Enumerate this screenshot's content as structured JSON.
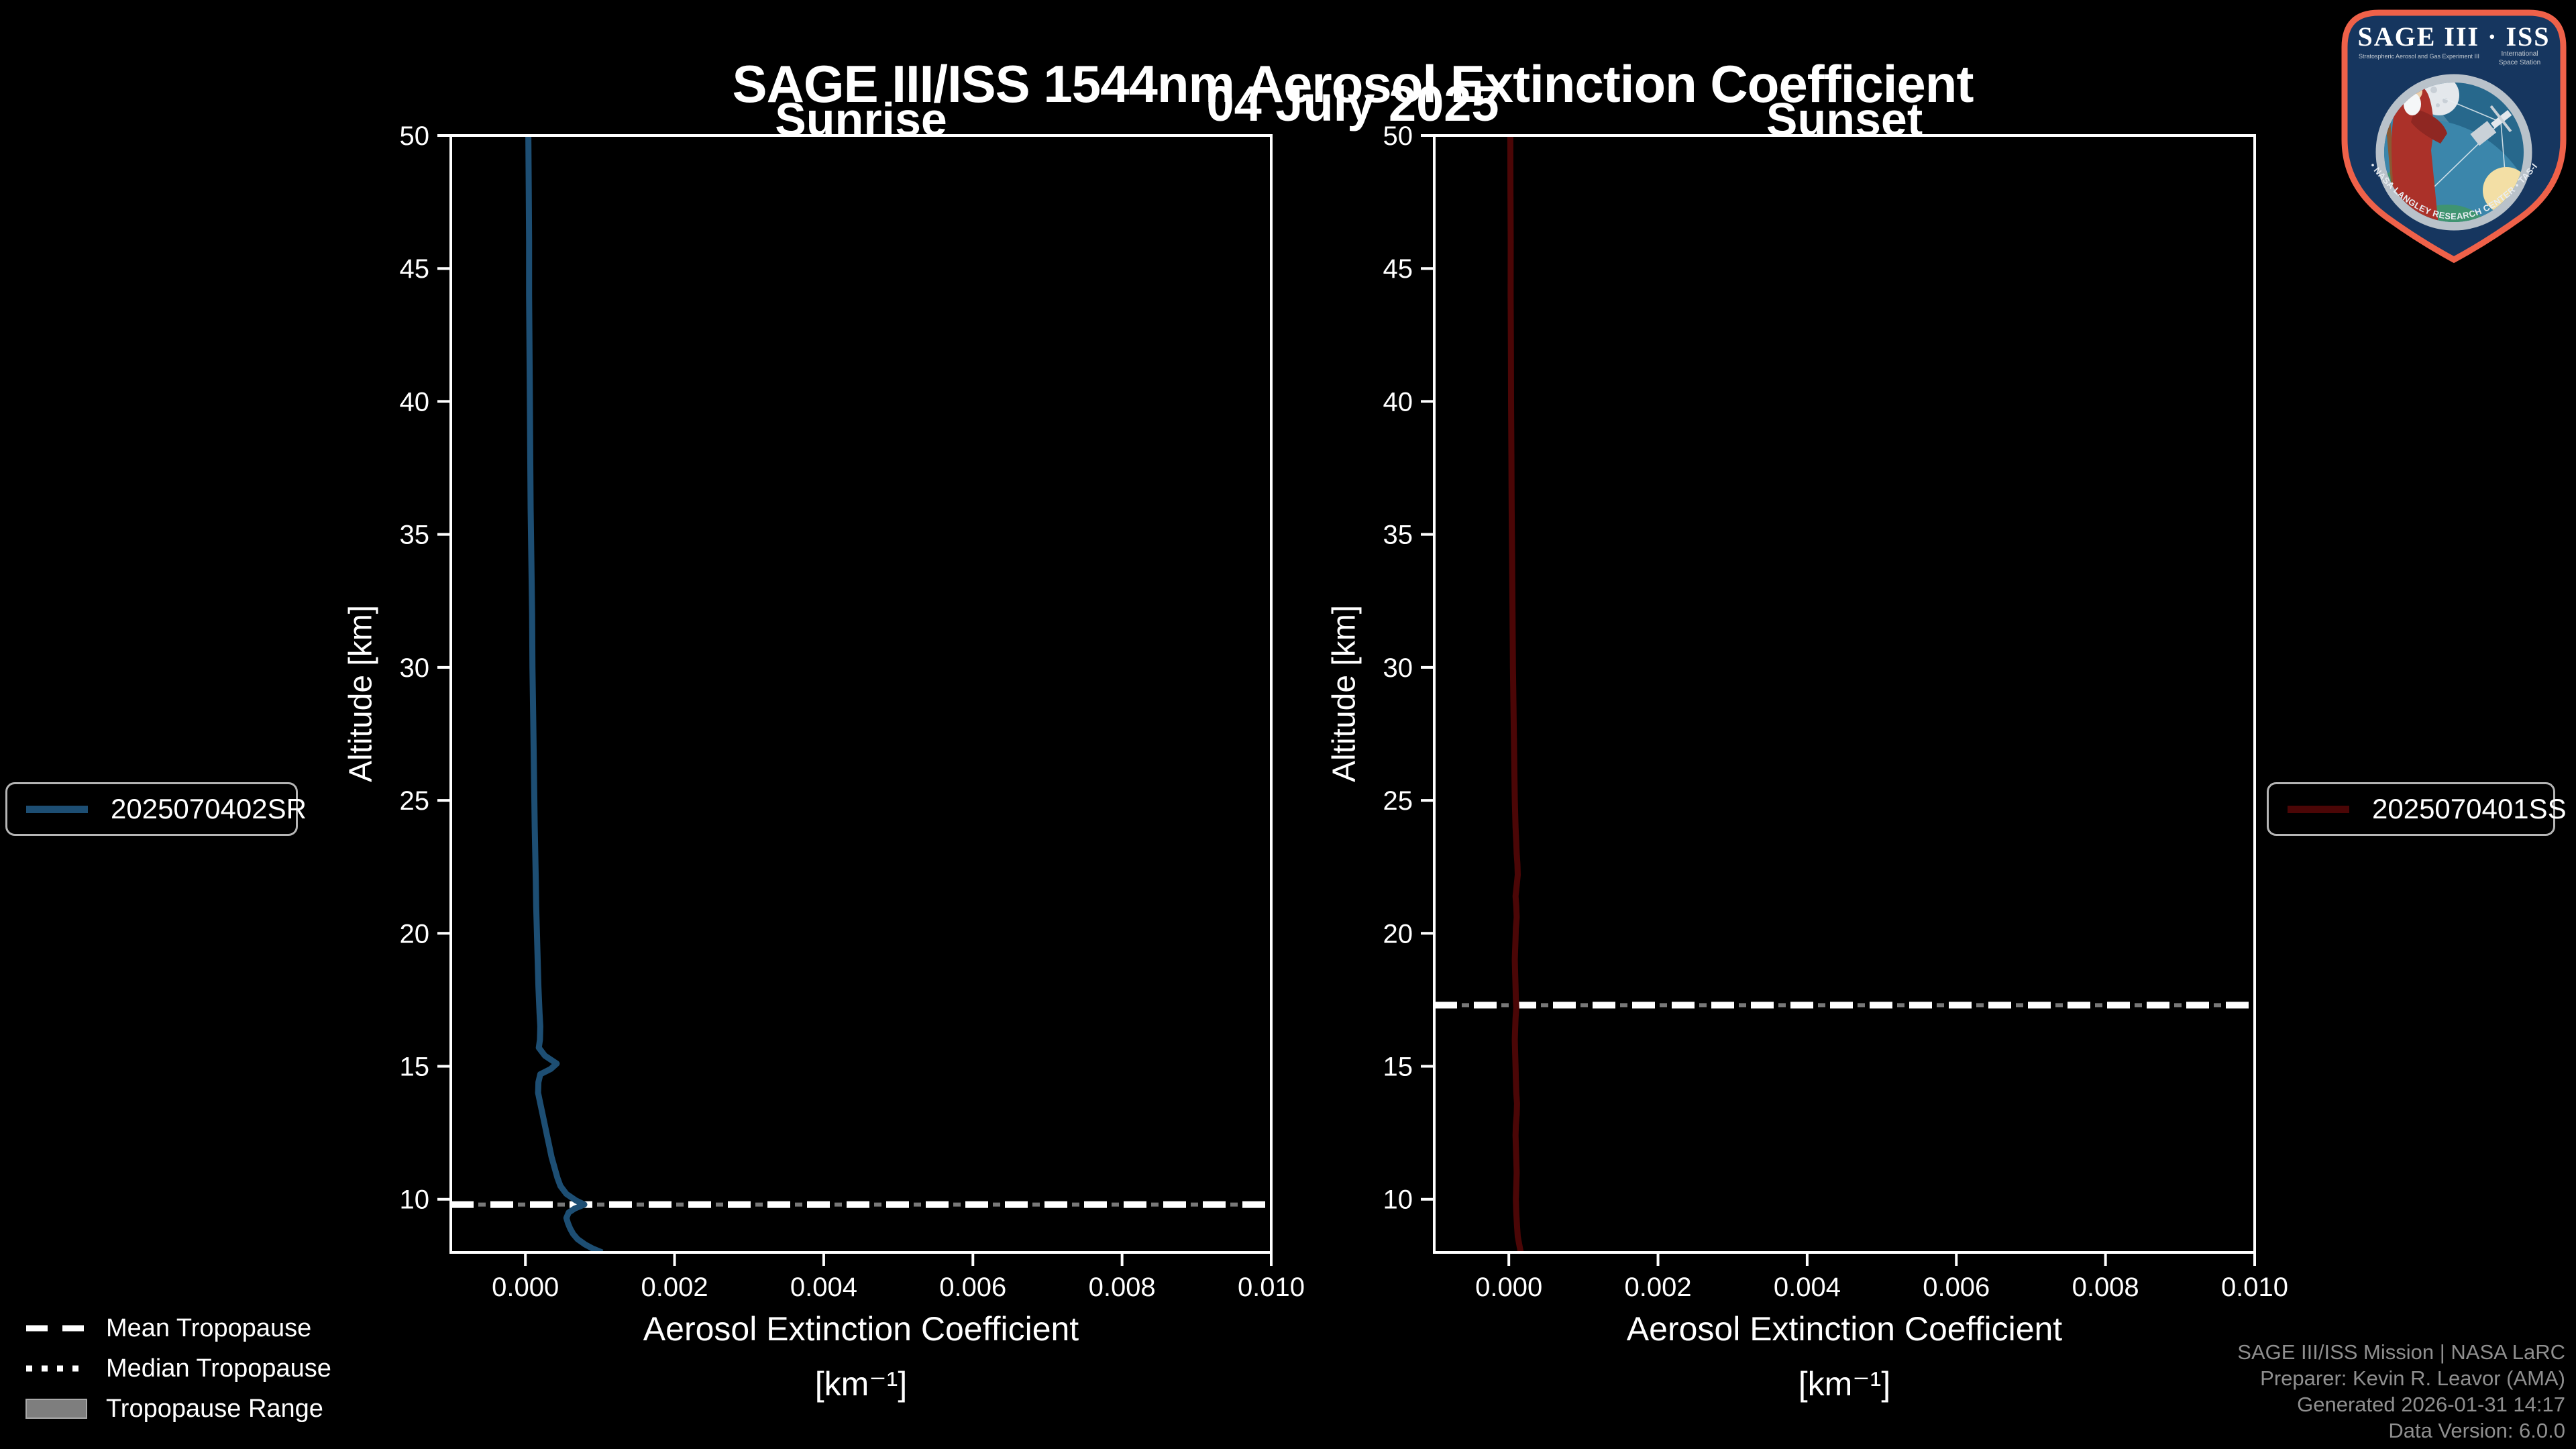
{
  "title": "SAGE III/ISS 1544nm Aerosol Extinction Coefficient",
  "date_label": "04 July 2025",
  "colors": {
    "background": "#000000",
    "axis": "#ffffff",
    "sunrise_line": "#1d4e73",
    "sunset_line": "#4b0606",
    "tropopause_mean": "#ffffff",
    "tropopause_median": "#787878",
    "tropopause_range": "#7e7e7e",
    "legend_border": "#b5b5b5",
    "footer_text": "#8f8f8f"
  },
  "tropopause_legend": {
    "mean": "Mean Tropopause",
    "median": "Median Tropopause",
    "range": "Tropopause Range"
  },
  "footer": {
    "line1": "SAGE III/ISS Mission | NASA LaRC",
    "line2": "Preparer: Kevin R. Leavor (AMA)",
    "line3": "Generated 2026-01-31 14:17",
    "line4": "Data Version: 6.0.0"
  },
  "logo": {
    "title": "SAGE III · ISS",
    "subtitle_left": "Stratospheric Aerosol and Gas Experiment III",
    "subtitle_right_1": "International",
    "subtitle_right_2": "Space Station",
    "ring_text": "BALL • NASA LANGLEY RESEARCH CENTER • TAS-I • ESA"
  },
  "chart_data": [
    {
      "type": "line",
      "title": "Sunrise",
      "xlabel": "Aerosol Extinction Coefficient",
      "xlabel_units": "[km⁻¹]",
      "ylabel": "Altitude [km]",
      "xlim": [
        -0.001,
        0.01
      ],
      "ylim": [
        8,
        50
      ],
      "xticks": [
        0.0,
        0.002,
        0.004,
        0.006,
        0.008,
        0.01
      ],
      "yticks": [
        10,
        15,
        20,
        25,
        30,
        35,
        40,
        45,
        50
      ],
      "grid": false,
      "legend_position": "outside-left",
      "mean_tropopause_km": 9.8,
      "series": [
        {
          "name": "2025070402SR",
          "color": "#1d4e73",
          "points_alt_ext": [
            [
              50,
              4e-05
            ],
            [
              48,
              4.5e-05
            ],
            [
              46,
              5e-05
            ],
            [
              44,
              5e-05
            ],
            [
              42,
              5.5e-05
            ],
            [
              40,
              6e-05
            ],
            [
              38,
              6.5e-05
            ],
            [
              36,
              7e-05
            ],
            [
              34,
              8e-05
            ],
            [
              32,
              9e-05
            ],
            [
              30,
              9.5e-05
            ],
            [
              28,
              0.000105
            ],
            [
              26,
              0.000115
            ],
            [
              24,
              0.000125
            ],
            [
              22,
              0.00014
            ],
            [
              21,
              0.000145
            ],
            [
              20,
              0.000155
            ],
            [
              19,
              0.000165
            ],
            [
              18,
              0.000175
            ],
            [
              17,
              0.00019
            ],
            [
              16.5,
              0.0002
            ],
            [
              16,
              0.000195
            ],
            [
              15.7,
              0.00018
            ],
            [
              15.4,
              0.00026
            ],
            [
              15.1,
              0.00042
            ],
            [
              14.9,
              0.00034
            ],
            [
              14.7,
              0.0002
            ],
            [
              14.4,
              0.000175
            ],
            [
              14,
              0.00017
            ],
            [
              13.6,
              0.0002
            ],
            [
              13.2,
              0.00023
            ],
            [
              12.8,
              0.00026
            ],
            [
              12.4,
              0.00029
            ],
            [
              12,
              0.00032
            ],
            [
              11.6,
              0.00035
            ],
            [
              11.2,
              0.00039
            ],
            [
              10.8,
              0.00043
            ],
            [
              10.5,
              0.00047
            ],
            [
              10.2,
              0.00055
            ],
            [
              9.95,
              0.00068
            ],
            [
              9.8,
              0.00079
            ],
            [
              9.65,
              0.00066
            ],
            [
              9.5,
              0.00058
            ],
            [
              9.3,
              0.00055
            ],
            [
              9.1,
              0.00057
            ],
            [
              8.9,
              0.0006
            ],
            [
              8.7,
              0.00064
            ],
            [
              8.5,
              0.0007
            ],
            [
              8.3,
              0.0008
            ],
            [
              8.15,
              0.0009
            ],
            [
              8.0,
              0.00103
            ]
          ]
        }
      ]
    },
    {
      "type": "line",
      "title": "Sunset",
      "xlabel": "Aerosol Extinction Coefficient",
      "xlabel_units": "[km⁻¹]",
      "ylabel": "Altitude [km]",
      "xlim": [
        -0.001,
        0.01
      ],
      "ylim": [
        8,
        50
      ],
      "xticks": [
        0.0,
        0.002,
        0.004,
        0.006,
        0.008,
        0.01
      ],
      "yticks": [
        10,
        15,
        20,
        25,
        30,
        35,
        40,
        45,
        50
      ],
      "grid": false,
      "legend_position": "outside-right",
      "mean_tropopause_km": 17.3,
      "series": [
        {
          "name": "2025070401SS",
          "color": "#4b0606",
          "points_alt_ext": [
            [
              50,
              2e-05
            ],
            [
              48,
              2.2e-05
            ],
            [
              46,
              2.5e-05
            ],
            [
              44,
              2.4e-05
            ],
            [
              42,
              2.8e-05
            ],
            [
              40,
              3e-05
            ],
            [
              38,
              3.4e-05
            ],
            [
              36,
              3.8e-05
            ],
            [
              34,
              4.4e-05
            ],
            [
              32,
              5e-05
            ],
            [
              30,
              5.5e-05
            ],
            [
              28,
              6.5e-05
            ],
            [
              26,
              7.5e-05
            ],
            [
              25,
              8e-05
            ],
            [
              24,
              9e-05
            ],
            [
              23.4,
              0.0001
            ],
            [
              23,
              0.000105
            ],
            [
              22.6,
              0.000115
            ],
            [
              22.2,
              0.00012
            ],
            [
              21.8,
              0.000105
            ],
            [
              21.4,
              9e-05
            ],
            [
              21,
              0.0001
            ],
            [
              20.6,
              0.000105
            ],
            [
              20.2,
              9.5e-05
            ],
            [
              19.8,
              9e-05
            ],
            [
              19.4,
              8.5e-05
            ],
            [
              19,
              8e-05
            ],
            [
              18.5,
              8.5e-05
            ],
            [
              18,
              9e-05
            ],
            [
              17.5,
              9.5e-05
            ],
            [
              17.2,
              0.0001
            ],
            [
              16.8,
              9e-05
            ],
            [
              16.4,
              8.5e-05
            ],
            [
              16,
              8e-05
            ],
            [
              15.5,
              8.5e-05
            ],
            [
              15,
              9e-05
            ],
            [
              14.5,
              9.5e-05
            ],
            [
              14,
              0.0001
            ],
            [
              13.6,
              0.00011
            ],
            [
              13.2,
              0.000105
            ],
            [
              12.8,
              9.5e-05
            ],
            [
              12.4,
              9e-05
            ],
            [
              12,
              9.5e-05
            ],
            [
              11.5,
              0.0001
            ],
            [
              11,
              0.000105
            ],
            [
              10.5,
              0.0001
            ],
            [
              10,
              9.5e-05
            ],
            [
              9.5,
              0.0001
            ],
            [
              9,
              0.00011
            ],
            [
              8.6,
              0.00012
            ],
            [
              8.3,
              0.00014
            ],
            [
              8.0,
              0.00016
            ]
          ]
        }
      ]
    }
  ]
}
